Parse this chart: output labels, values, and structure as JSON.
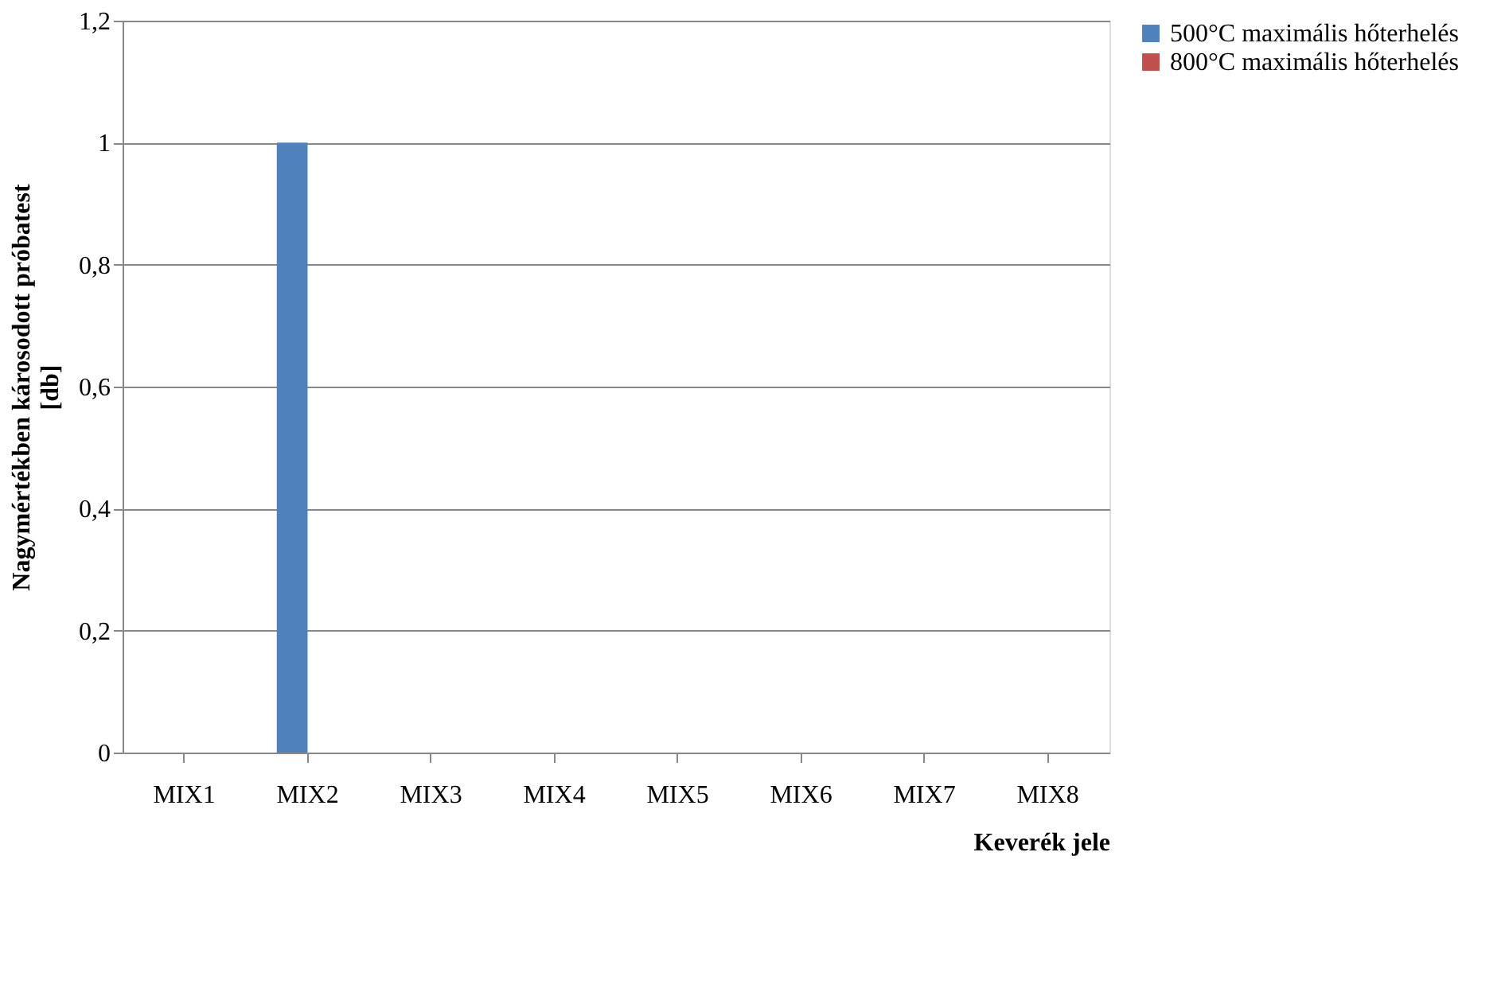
{
  "chart_data": {
    "type": "bar",
    "xlabel": "Keverék jele",
    "ylabel": "Nagymértékben károsodott próbatest [db]",
    "categories": [
      "MIX1",
      "MIX2",
      "MIX3",
      "MIX4",
      "MIX5",
      "MIX6",
      "MIX7",
      "MIX8"
    ],
    "series": [
      {
        "name": "500°C  maximális hőterhelés",
        "color": "#4f81bd",
        "values": [
          0,
          1,
          0,
          0,
          0,
          0,
          0,
          0
        ]
      },
      {
        "name": "800°C  maximális hőterhelés",
        "color": "#c0504d",
        "values": [
          0,
          0,
          0,
          0,
          0,
          0,
          0,
          0
        ]
      }
    ],
    "ylim": [
      0,
      1.2
    ],
    "yticks": [
      0,
      {
        "value": 0.2,
        "label": "0,2"
      },
      {
        "value": 0.4,
        "label": "0,4"
      },
      {
        "value": 0.6,
        "label": "0,6"
      },
      {
        "value": 0.8,
        "label": "0,8"
      },
      1,
      {
        "value": 1.2,
        "label": "1,2"
      }
    ],
    "grid": "y",
    "legend": "right"
  }
}
